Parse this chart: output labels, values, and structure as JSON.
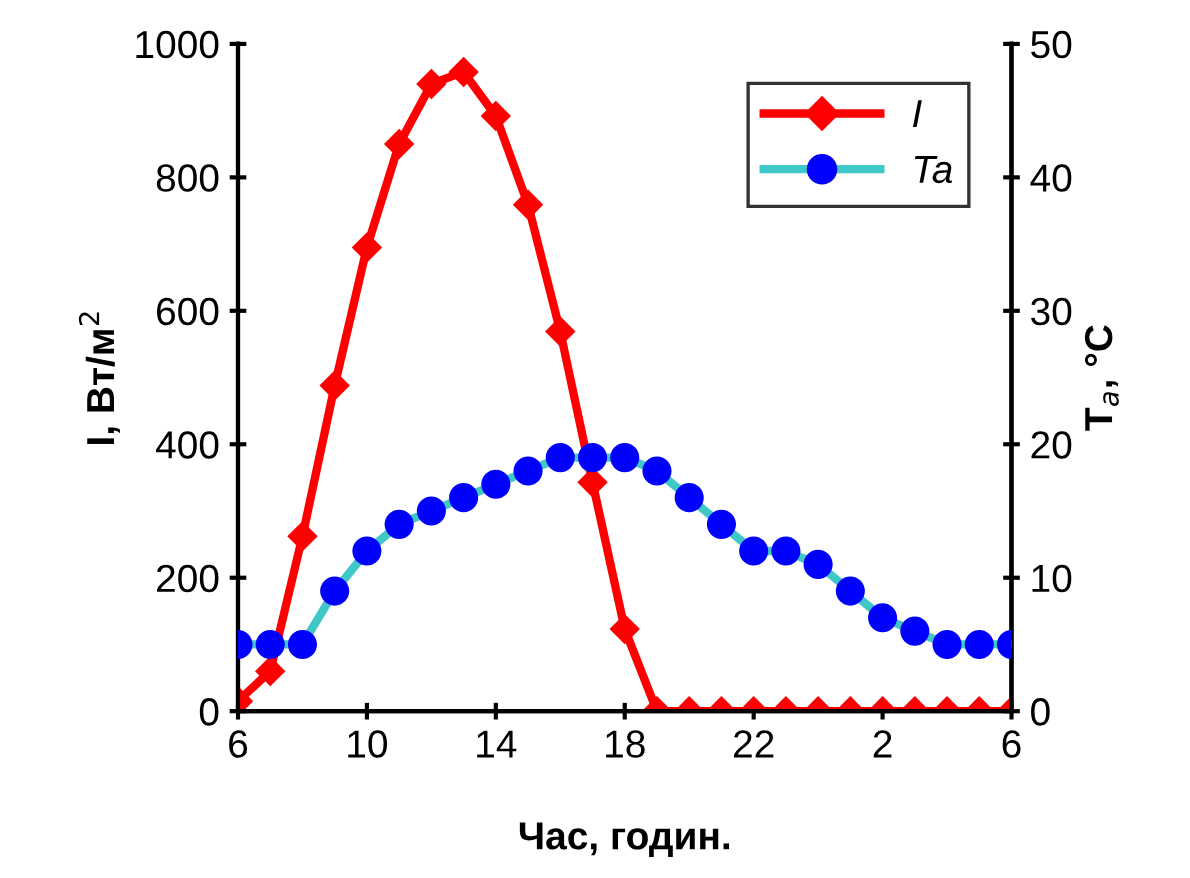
{
  "chart_data": {
    "type": "line",
    "xlabel": "Час, годин.",
    "ylabel": "I, Вт/м$^{2}$",
    "y2label": "T$_{a}$, °C",
    "categories": [
      "6",
      null,
      null,
      null,
      "10",
      null,
      null,
      null,
      "14",
      null,
      null,
      null,
      "18",
      null,
      null,
      null,
      "22",
      null,
      null,
      null,
      "2",
      null,
      null,
      null,
      "6"
    ],
    "series": [
      {
        "name": "I",
        "color": "#ff0000",
        "marker": "diamond",
        "values": [
          15,
          60,
          262,
          488,
          695,
          850,
          940,
          958,
          892,
          759,
          569,
          343,
          123,
          0,
          0,
          0,
          0,
          0,
          0,
          0,
          0,
          0,
          0,
          0,
          0
        ]
      },
      {
        "name": "Ta",
        "color": "#40c8c8",
        "colors": [
          "#0000ff",
          "#0000ff",
          "#0000ff",
          "#0000ff",
          "#0000ff",
          "#0000ff",
          "#0000ff",
          "#0000ff",
          "#0000ff",
          "#0000ff",
          "#0000ff",
          "#0000ff",
          "#0000ff",
          "#0000ff",
          "#0000ff",
          "#0000ff",
          "#0000ff",
          "#0000ff",
          "#0000ff",
          "#0000ff",
          "#0000ff",
          "#0000ff",
          "#0000ff",
          "#0000ff",
          "#0000ff"
        ],
        "marker": "circle",
        "axis": "y2",
        "values": [
          5,
          5,
          5,
          9,
          12,
          14,
          15,
          16,
          17,
          18,
          19,
          19,
          19,
          18,
          16,
          14,
          12,
          12,
          11,
          9,
          7,
          6,
          5,
          5,
          5
        ]
      }
    ],
    "ylim": [
      0,
      1000
    ],
    "yticks": [
      0,
      200,
      400,
      600,
      800,
      1000
    ],
    "y2lim": [
      0,
      50
    ],
    "y2ticks": [
      0,
      10,
      20,
      30,
      40,
      50
    ],
    "grid": false,
    "legend": "top right"
  }
}
